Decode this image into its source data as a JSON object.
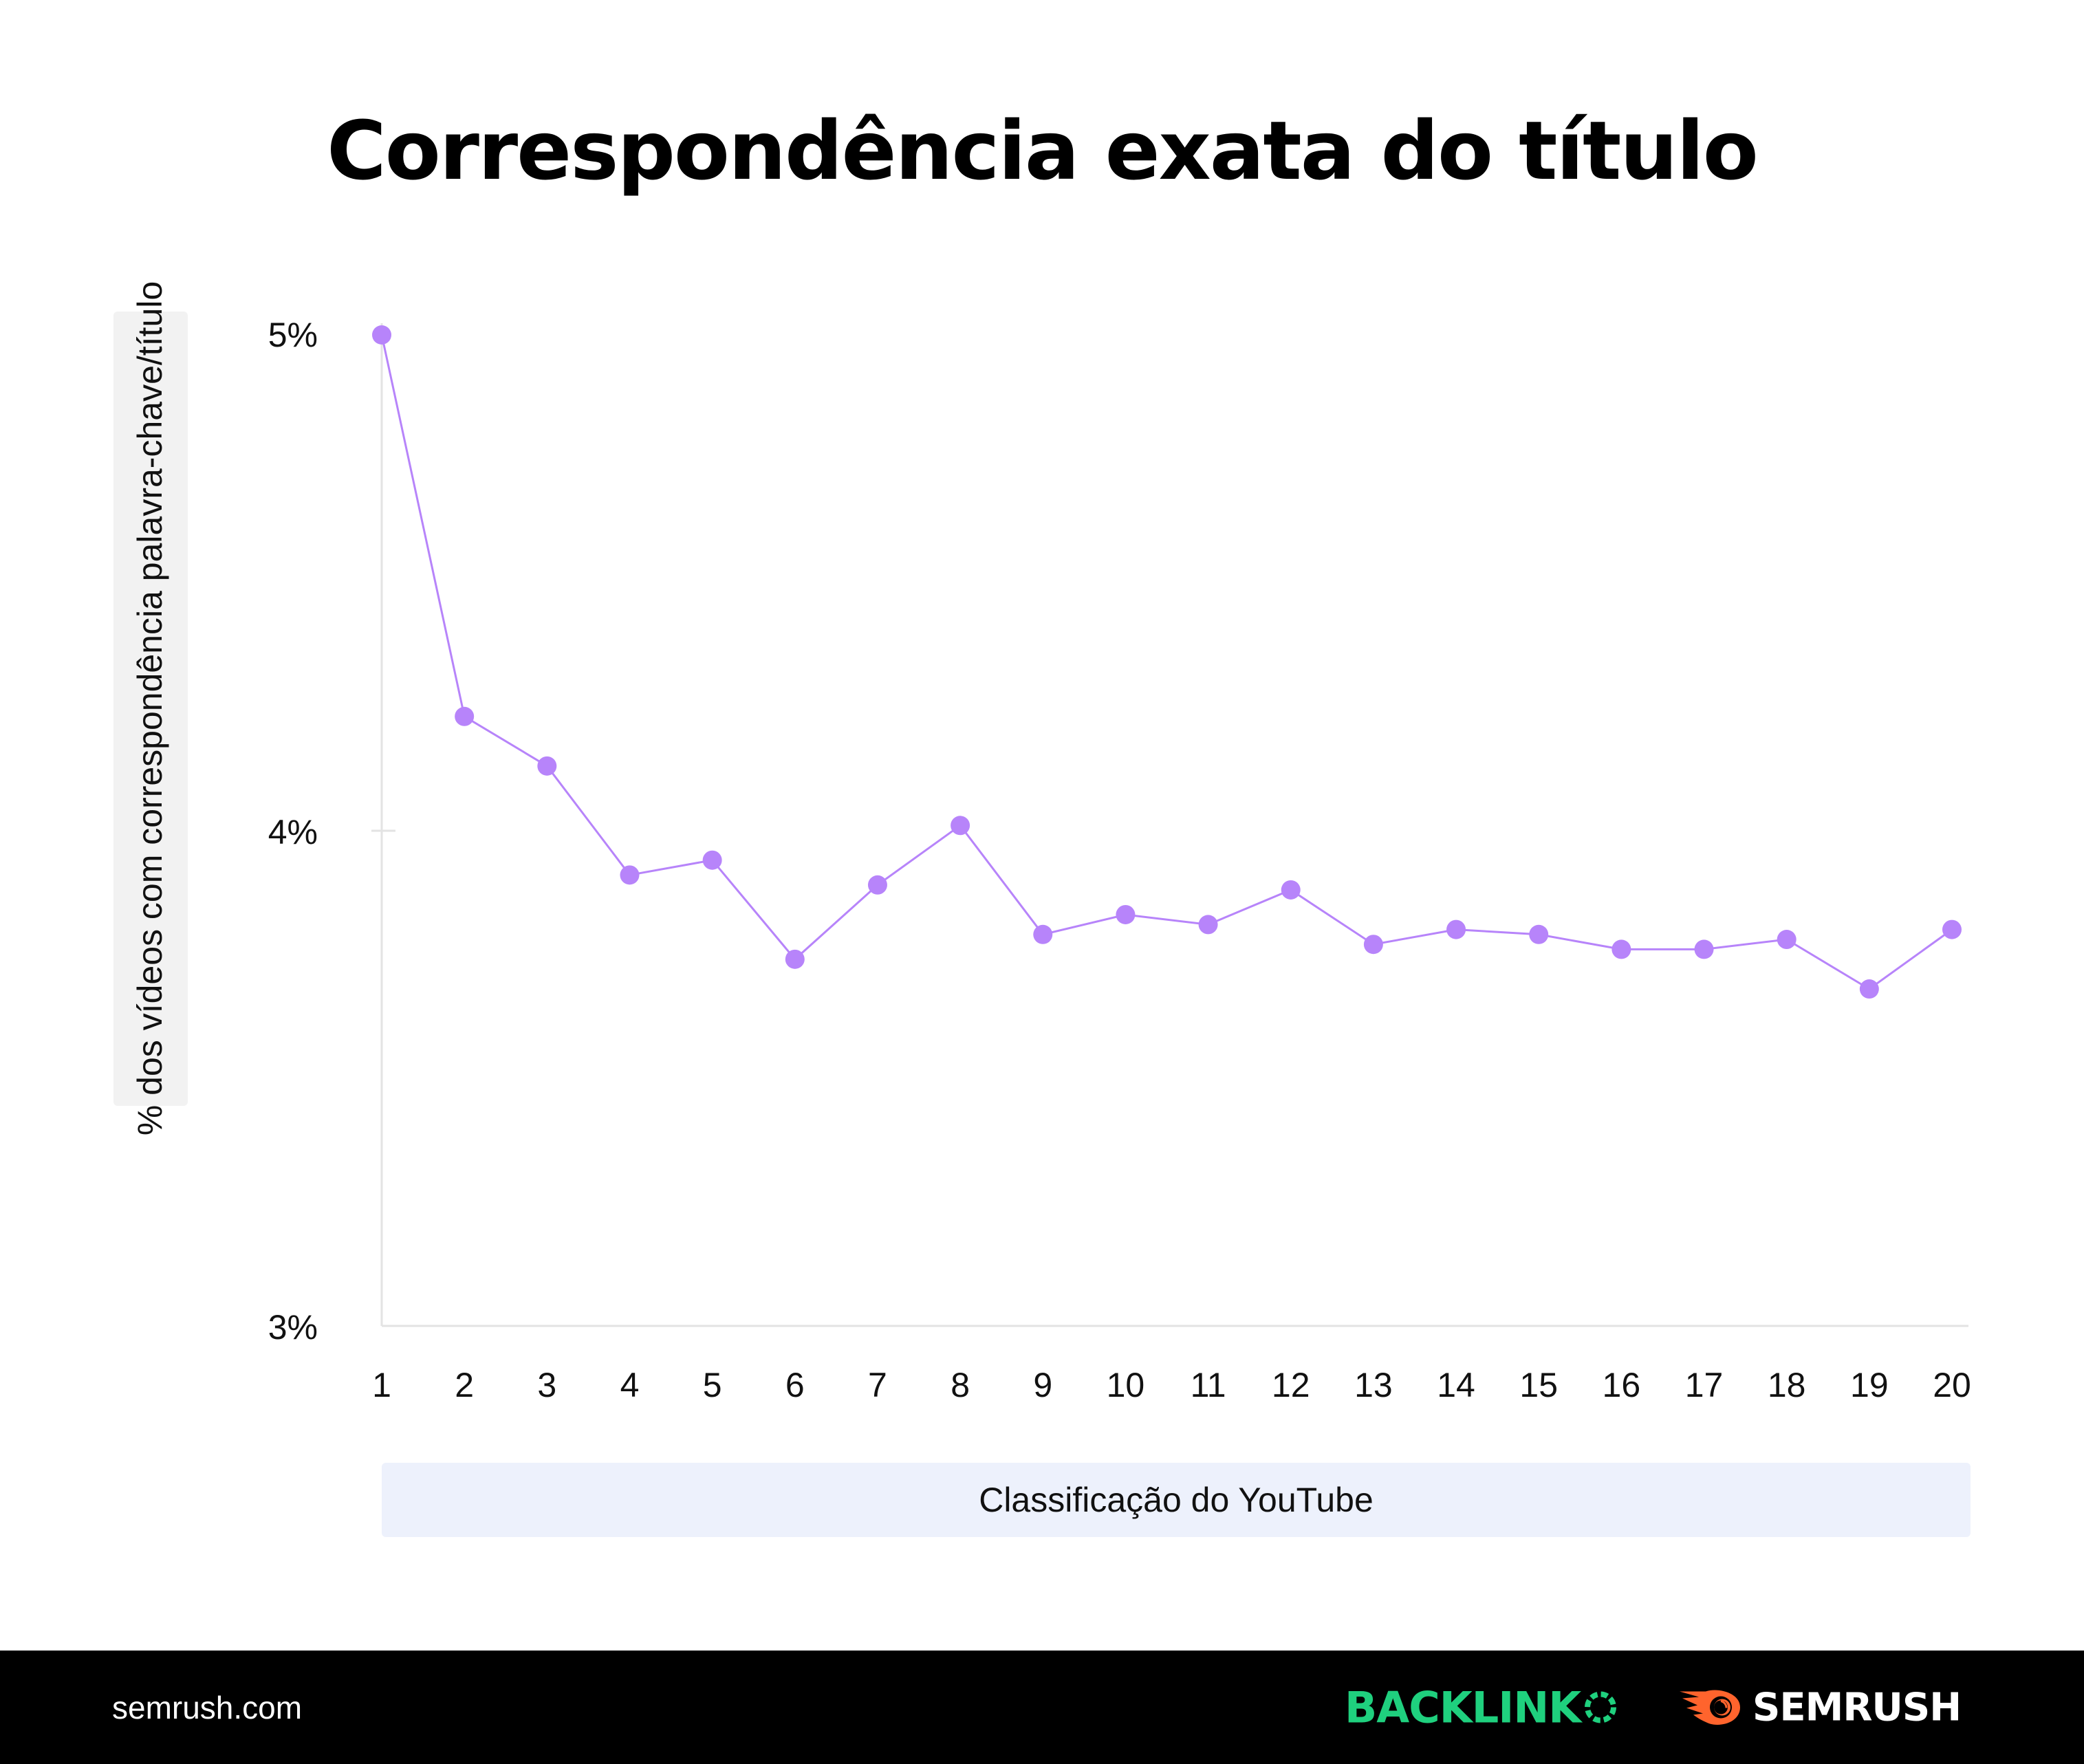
{
  "title": "Correspondência exata do título",
  "y_axis": {
    "label": "% dos vídeos com correspondência palavra-chave/título",
    "ticks": [
      "5%",
      "4%",
      "3%"
    ]
  },
  "x_axis": {
    "label": "Classificação do YouTube",
    "ticks": [
      "1",
      "2",
      "3",
      "4",
      "5",
      "6",
      "7",
      "8",
      "9",
      "10",
      "11",
      "12",
      "13",
      "14",
      "15",
      "16",
      "17",
      "18",
      "19",
      "20"
    ]
  },
  "footer": {
    "url": "semrush.com",
    "brand_1": "BACKLINK",
    "brand_2": "SEMRUSH"
  },
  "colors": {
    "series": "#b784fa",
    "axis": "#e0e0e0",
    "ylabel_bg": "#f2f2f2",
    "xlabel_bg": "#edf1fc",
    "backlinko_green": "#1fd07e",
    "semrush_orange": "#ff642d",
    "footer_bg": "#000000"
  },
  "chart_data": {
    "type": "line",
    "title": "Correspondência exata do título",
    "xlabel": "Classificação do YouTube",
    "ylabel": "% dos vídeos com correspondência palavra-chave/título",
    "categories": [
      1,
      2,
      3,
      4,
      5,
      6,
      7,
      8,
      9,
      10,
      11,
      12,
      13,
      14,
      15,
      16,
      17,
      18,
      19,
      20
    ],
    "series": [
      {
        "name": "% dos vídeos com correspondência palavra-chave/título",
        "values": [
          5.0,
          4.23,
          4.13,
          3.91,
          3.94,
          3.74,
          3.89,
          4.01,
          3.79,
          3.83,
          3.81,
          3.88,
          3.77,
          3.8,
          3.79,
          3.76,
          3.76,
          3.78,
          3.68,
          3.8
        ]
      }
    ],
    "ylim": [
      3,
      5
    ],
    "yticks": [
      "3%",
      "4%",
      "5%"
    ],
    "grid": false,
    "legend": "none",
    "markers": true
  }
}
